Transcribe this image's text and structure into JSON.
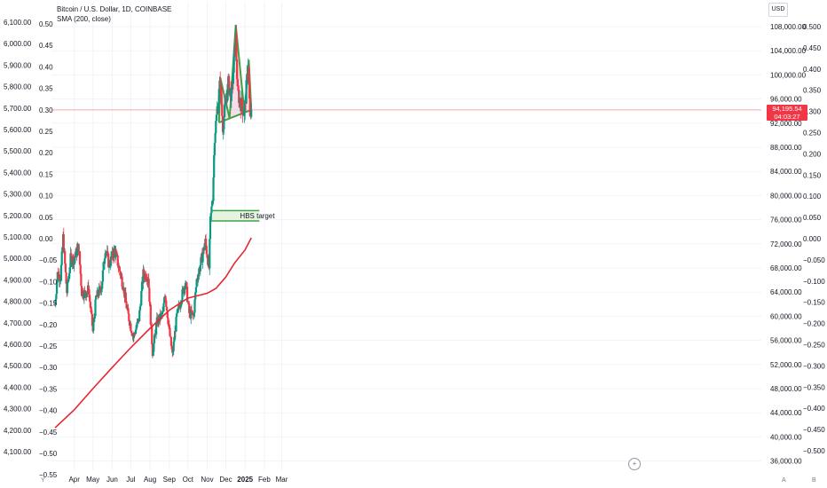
{
  "legend": {
    "symbol": "Bitcoin / U.S. Dollar, 1D, COINBASE",
    "indicator": "SMA (200, close)"
  },
  "currency_label": "USD",
  "last_price": {
    "value": "94,195.54",
    "countdown": "04:03:27"
  },
  "corner_labels": {
    "bottom_left": "Y",
    "bottom_right_inner": "A",
    "bottom_right_outer": "B"
  },
  "goto_realtime_icon": "plus-circle-icon",
  "colors": {
    "up": "#089981",
    "down": "#f23645",
    "sma": "#e8262f",
    "pattern_line": "#43a047",
    "pattern_fill": "#f3d6e4",
    "target_fill": "#e4f4e1",
    "grid": "#f0f3fa"
  },
  "chart_data": {
    "type": "candlestick",
    "title": "Bitcoin / U.S. Dollar, 1D, COINBASE",
    "indicator": "SMA (200, close)",
    "x_tick_labels": [
      "Apr",
      "May",
      "Jun",
      "Jul",
      "Aug",
      "Sep",
      "Oct",
      "Nov",
      "Dec",
      "2025",
      "Feb",
      "Mar"
    ],
    "price_axis_right": {
      "unit": "USD",
      "labels": [
        "108,000.00",
        "104,000.00",
        "100,000.00",
        "96,000.00",
        "92,000.00",
        "88,000.00",
        "84,000.00",
        "80,000.00",
        "76,000.00",
        "72,000.00",
        "68,000.00",
        "64,000.00",
        "60,000.00",
        "56,000.00",
        "52,000.00",
        "48,000.00",
        "44,000.00",
        "40,000.00",
        "36,000.00"
      ],
      "range": [
        35500,
        110500
      ]
    },
    "left_axis_outer": {
      "labels": [
        "6,100.00",
        "6,000.00",
        "5,900.00",
        "5,800.00",
        "5,700.00",
        "5,600.00",
        "5,500.00",
        "5,400.00",
        "5,300.00",
        "5,200.00",
        "5,100.00",
        "5,000.00",
        "4,900.00",
        "4,800.00",
        "4,700.00",
        "4,600.00",
        "4,500.00",
        "4,400.00",
        "4,300.00",
        "4,200.00",
        "4,100.00"
      ]
    },
    "left_axis_inner": {
      "labels": [
        "0.50",
        "0.45",
        "0.40",
        "0.35",
        "0.30",
        "0.25",
        "0.20",
        "0.15",
        "0.10",
        "0.05",
        "0.00",
        "−0.05",
        "−0.10",
        "−0.15",
        "−0.20",
        "−0.25",
        "−0.30",
        "−0.35",
        "−0.40",
        "−0.45",
        "−0.50",
        "−0.55"
      ]
    },
    "right_axis_outer": {
      "labels": [
        "0.500",
        "0.450",
        "0.400",
        "0.350",
        "0.300",
        "0.250",
        "0.200",
        "0.150",
        "0.100",
        "0.050",
        "0.000",
        "−0.050",
        "−0.100",
        "−0.150",
        "−0.200",
        "−0.250",
        "−0.300",
        "−0.350",
        "−0.400",
        "−0.450",
        "−0.500"
      ]
    },
    "price_close_path": [
      [
        "Mar 1",
        62000
      ],
      [
        "Mar 5",
        67000
      ],
      [
        "Mar 10",
        66500
      ],
      [
        "Mar 14",
        73000
      ],
      [
        "Mar 20",
        64000
      ],
      [
        "Mar 26",
        69500
      ],
      [
        "Apr 1",
        69500
      ],
      [
        "Apr 8",
        71600
      ],
      [
        "Apr 13",
        64000
      ],
      [
        "Apr 19",
        63800
      ],
      [
        "Apr 24",
        64500
      ],
      [
        "May 1",
        57500
      ],
      [
        "May 6",
        63000
      ],
      [
        "May 15",
        65000
      ],
      [
        "May 21",
        71400
      ],
      [
        "May 27",
        68500
      ],
      [
        "Jun 5",
        71000
      ],
      [
        "Jun 12",
        68000
      ],
      [
        "Jun 19",
        65000
      ],
      [
        "Jun 25",
        61000
      ],
      [
        "Jul 5",
        56500
      ],
      [
        "Jul 14",
        59500
      ],
      [
        "Jul 21",
        67000
      ],
      [
        "Jul 29",
        66700
      ],
      [
        "Aug 5",
        54000
      ],
      [
        "Aug 12",
        59000
      ],
      [
        "Aug 22",
        60500
      ],
      [
        "Aug 25",
        64000
      ],
      [
        "Sep 1",
        57500
      ],
      [
        "Sep 6",
        53500
      ],
      [
        "Sep 13",
        60000
      ],
      [
        "Sep 27",
        65800
      ],
      [
        "Oct 3",
        60500
      ],
      [
        "Oct 10",
        60000
      ],
      [
        "Oct 15",
        66000
      ],
      [
        "Oct 21",
        68500
      ],
      [
        "Oct 29",
        72300
      ],
      [
        "Nov 4",
        68000
      ],
      [
        "Nov 6",
        75600
      ],
      [
        "Nov 10",
        80000
      ],
      [
        "Nov 13",
        90000
      ],
      [
        "Nov 22",
        99000
      ],
      [
        "Nov 26",
        91500
      ],
      [
        "Dec 5",
        98500
      ],
      [
        "Dec 10",
        96500
      ],
      [
        "Dec 17",
        106000
      ],
      [
        "Dec 20",
        97000
      ],
      [
        "Dec 26",
        95000
      ],
      [
        "Dec 31",
        93500
      ],
      [
        "Jan 6",
        102000
      ],
      [
        "Jan 9",
        92500
      ],
      [
        "Jan 11",
        94195.54
      ]
    ],
    "sma_200_path": [
      [
        "Mar 1",
        41500
      ],
      [
        "Apr 1",
        44500
      ],
      [
        "May 1",
        48000
      ],
      [
        "Jun 1",
        51500
      ],
      [
        "Jul 1",
        54800
      ],
      [
        "Aug 1",
        58000
      ],
      [
        "Sep 1",
        61000
      ],
      [
        "Oct 1",
        63000
      ],
      [
        "Oct 20",
        63500
      ],
      [
        "Nov 1",
        63800
      ],
      [
        "Nov 15",
        64600
      ],
      [
        "Dec 1",
        66500
      ],
      [
        "Dec 15",
        68800
      ],
      [
        "Jan 1",
        71000
      ],
      [
        "Jan 11",
        73000
      ]
    ],
    "pattern": {
      "name": "head and shoulders",
      "neckline": [
        [
          "Nov 20",
          92100
        ],
        [
          "Jan 11",
          94200
        ]
      ],
      "left_shoulder_peak": [
        "Nov 22",
        99600
      ],
      "head_peak": [
        "Dec 17",
        108300
      ],
      "right_shoulder_peak": [
        "Jan 7",
        102500
      ]
    },
    "target_zone": {
      "label": "HBS target",
      "from": 75800,
      "to": 77500,
      "start": "Nov 7",
      "end": "Jan 24"
    },
    "last_price": 94195.54
  }
}
